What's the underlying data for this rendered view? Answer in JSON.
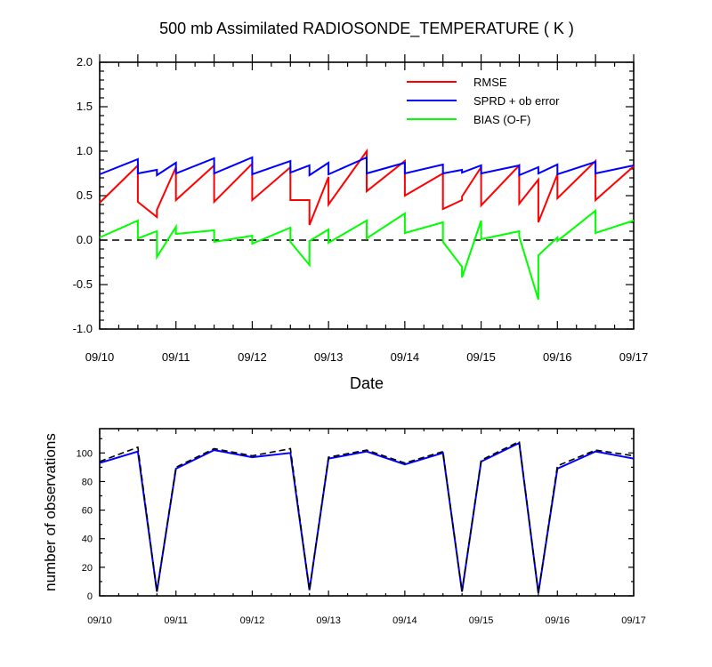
{
  "chart_data": [
    {
      "type": "line",
      "title": "500 mb Assimilated RADIOSONDE_TEMPERATURE ( K )",
      "xlabel": "Date",
      "ylabel": "",
      "xlim": [
        0,
        7
      ],
      "ylim": [
        -1.0,
        2.0
      ],
      "yticks": [
        -1.0,
        -0.5,
        0.0,
        0.5,
        1.0,
        1.5,
        2.0
      ],
      "yticklabels": [
        "-1.0",
        "-0.5",
        "0.0",
        "0.5",
        "1.0",
        "1.5",
        "2.0"
      ],
      "xtick_days": [
        0,
        1,
        2,
        3,
        4,
        5,
        6,
        7
      ],
      "xticklabels": [
        "09/10",
        "09/11",
        "09/12",
        "09/13",
        "09/14",
        "09/15",
        "09/16",
        "09/17"
      ],
      "zero_line": true,
      "legend_position": "top-right",
      "series": [
        {
          "name": "RMSE",
          "color": "#ff0000",
          "x": [
            0,
            0.5,
            0.5,
            0.75,
            0.75,
            1.0,
            1.0,
            1.5,
            1.5,
            2.0,
            2.0,
            2.5,
            2.5,
            2.75,
            2.75,
            3.0,
            3.0,
            3.5,
            3.5,
            4.0,
            4.0,
            4.5,
            4.5,
            4.75,
            4.75,
            5.0,
            5.0,
            5.5,
            5.5,
            5.75,
            5.75,
            6.0,
            6.0,
            6.5,
            6.5,
            7.0
          ],
          "values": [
            0.42,
            0.84,
            0.43,
            0.26,
            0.34,
            0.82,
            0.45,
            0.84,
            0.43,
            0.86,
            0.45,
            0.82,
            0.45,
            0.45,
            0.17,
            0.71,
            0.4,
            1.0,
            0.55,
            0.89,
            0.5,
            0.75,
            0.35,
            0.45,
            0.49,
            0.82,
            0.39,
            0.84,
            0.41,
            0.68,
            0.2,
            0.74,
            0.47,
            0.89,
            0.45,
            0.83
          ]
        },
        {
          "name": "SPRD + ob error",
          "color": "#0000ff",
          "x": [
            0,
            0.5,
            0.5,
            0.75,
            0.75,
            1.0,
            1.0,
            1.5,
            1.5,
            2.0,
            2.0,
            2.5,
            2.5,
            2.75,
            2.75,
            3.0,
            3.0,
            3.5,
            3.5,
            4.0,
            4.0,
            4.5,
            4.5,
            4.75,
            4.75,
            5.0,
            5.0,
            5.5,
            5.5,
            5.75,
            5.75,
            6.0,
            6.0,
            6.5,
            6.5,
            7.0
          ],
          "values": [
            0.74,
            0.91,
            0.75,
            0.79,
            0.73,
            0.87,
            0.75,
            0.92,
            0.75,
            0.93,
            0.74,
            0.89,
            0.76,
            0.84,
            0.73,
            0.87,
            0.74,
            0.93,
            0.75,
            0.87,
            0.75,
            0.85,
            0.75,
            0.79,
            0.76,
            0.84,
            0.75,
            0.84,
            0.73,
            0.82,
            0.75,
            0.85,
            0.74,
            0.88,
            0.75,
            0.84
          ]
        },
        {
          "name": "BIAS (O-F)",
          "color": "#00ff00",
          "x": [
            0,
            0.5,
            0.5,
            0.75,
            0.75,
            1.0,
            1.0,
            1.5,
            1.5,
            2.0,
            2.0,
            2.5,
            2.5,
            2.75,
            2.75,
            3.0,
            3.0,
            3.5,
            3.5,
            4.0,
            4.0,
            4.5,
            4.5,
            4.75,
            4.75,
            5.0,
            5.0,
            5.5,
            5.5,
            5.75,
            5.75,
            6.0,
            6.0,
            6.5,
            6.5,
            7.0
          ],
          "values": [
            0.03,
            0.22,
            0.02,
            0.1,
            -0.19,
            0.15,
            0.07,
            0.11,
            -0.02,
            0.05,
            -0.04,
            0.14,
            -0.02,
            -0.28,
            -0.01,
            0.12,
            -0.03,
            0.22,
            0.02,
            0.3,
            0.08,
            0.2,
            -0.02,
            -0.3,
            -0.42,
            0.22,
            0.01,
            0.1,
            0.04,
            -0.67,
            -0.17,
            0.03,
            -0.01,
            0.33,
            0.08,
            0.22
          ]
        }
      ]
    },
    {
      "type": "line",
      "title": "",
      "xlabel": "",
      "ylabel": "number of observations",
      "xlim": [
        0,
        7
      ],
      "ylim": [
        0,
        117
      ],
      "yticks": [
        0,
        20,
        40,
        60,
        80,
        100
      ],
      "yticklabels": [
        "0",
        "20",
        "40",
        "60",
        "80",
        "100"
      ],
      "xtick_days": [
        0,
        1,
        2,
        3,
        4,
        5,
        6,
        7
      ],
      "xticklabels": [
        "09/10",
        "09/11",
        "09/12",
        "09/13",
        "09/14",
        "09/15",
        "09/16",
        "09/17"
      ],
      "x": [
        0,
        0.5,
        0.75,
        1.0,
        1.5,
        2.0,
        2.5,
        2.75,
        3.0,
        3.5,
        4.0,
        4.5,
        4.75,
        5.0,
        5.5,
        5.75,
        6.0,
        6.5,
        7.0
      ],
      "series": [
        {
          "name": "",
          "color": "#0000ff",
          "style": "solid",
          "values": [
            93,
            101,
            3,
            89,
            102,
            97,
            100,
            4,
            96,
            101,
            92,
            100,
            3,
            94,
            107,
            2,
            89,
            101,
            96
          ]
        },
        {
          "name": "",
          "color": "#000000",
          "style": "dashed",
          "values": [
            94,
            104,
            3,
            90,
            103,
            98,
            103,
            4,
            97,
            102,
            93,
            101,
            3,
            95,
            108,
            2,
            91,
            102,
            98
          ]
        }
      ]
    }
  ]
}
